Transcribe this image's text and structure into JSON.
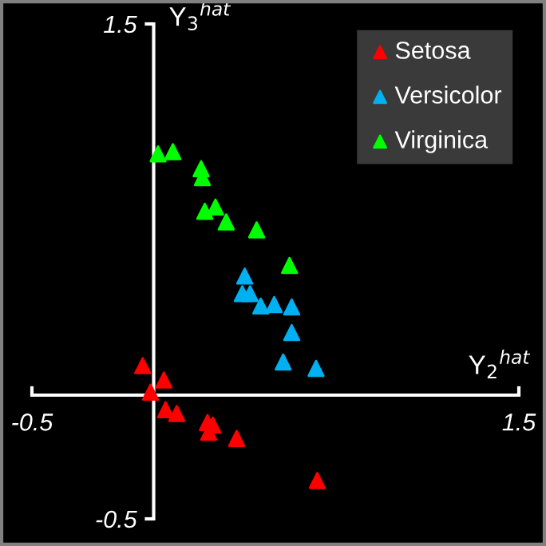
{
  "chart_data": {
    "type": "scatter",
    "xlabel": "Y$_{2}$$^{hat}$",
    "ylabel": "Y$_{3}$$^{hat}$",
    "xlim": [
      -0.5,
      1.5
    ],
    "ylim": [
      -0.5,
      1.5
    ],
    "xticks": [
      -0.5,
      1.5
    ],
    "yticks": [
      -0.5,
      1.5
    ],
    "marker": "triangle",
    "legend": "top right",
    "grid": false,
    "series": [
      {
        "name": "Setosa",
        "color": "#ff0000",
        "x": [
          -0.045,
          0.042,
          -0.013,
          0.049,
          0.095,
          0.221,
          0.243,
          0.226,
          0.341,
          0.672
        ],
        "values": [
          0.119,
          0.061,
          0.012,
          -0.059,
          -0.074,
          -0.111,
          -0.121,
          -0.15,
          -0.175,
          -0.345
        ]
      },
      {
        "name": "Versicolor",
        "color": "#00b0f0",
        "x": [
          0.374,
          0.364,
          0.396,
          0.44,
          0.495,
          0.567,
          0.567,
          0.532,
          0.667
        ],
        "values": [
          0.481,
          0.41,
          0.41,
          0.36,
          0.366,
          0.356,
          0.253,
          0.134,
          0.108
        ]
      },
      {
        "name": "Virginica",
        "color": "#00ff00",
        "x": [
          0.018,
          0.079,
          0.195,
          0.2,
          0.21,
          0.254,
          0.298,
          0.423,
          0.558
        ],
        "values": [
          0.975,
          0.984,
          0.915,
          0.879,
          0.743,
          0.76,
          0.7,
          0.668,
          0.524
        ]
      }
    ]
  }
}
